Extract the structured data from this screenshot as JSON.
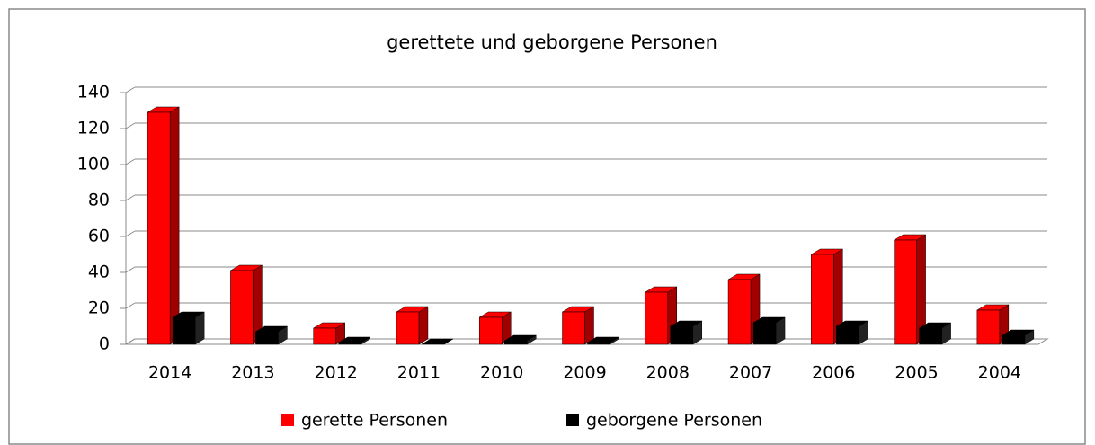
{
  "chart_data": {
    "type": "bar3d",
    "title": "gerettete und geborgene Personen",
    "categories": [
      "2014",
      "2013",
      "2012",
      "2011",
      "2010",
      "2009",
      "2008",
      "2007",
      "2006",
      "2005",
      "2004"
    ],
    "series": [
      {
        "name": "gerette Personen",
        "color": "#ff0000",
        "values": [
          129,
          41,
          9,
          18,
          15,
          18,
          29,
          36,
          50,
          58,
          19
        ]
      },
      {
        "name": "geborgene Personen",
        "color": "#000000",
        "values": [
          15,
          7,
          1,
          0,
          2,
          1,
          10,
          12,
          10,
          9,
          5
        ]
      }
    ],
    "ylim": [
      0,
      140
    ],
    "yticks": [
      0,
      20,
      40,
      60,
      80,
      100,
      120,
      140
    ],
    "grid": true,
    "legend": "bottom"
  }
}
